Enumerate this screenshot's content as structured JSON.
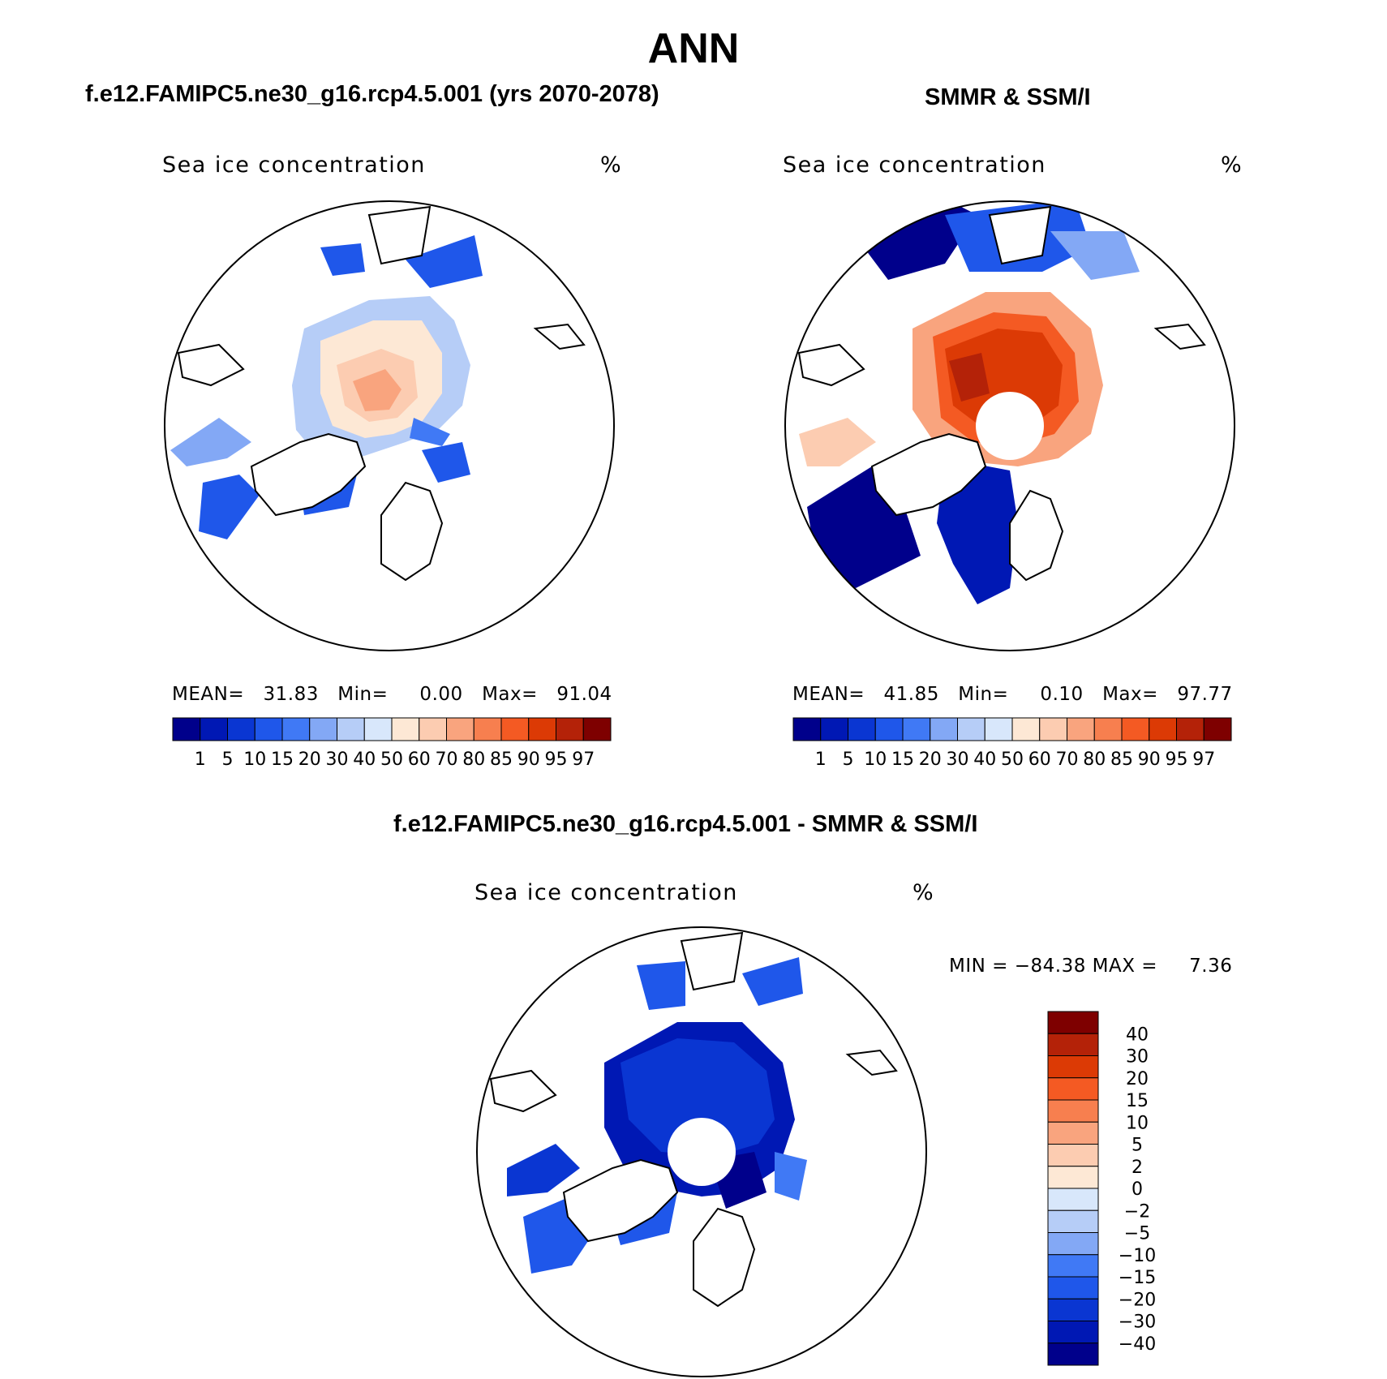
{
  "page": {
    "title": "ANN",
    "bottom_title": "f.e12.FAMIPC5.ne30_g16.rcp4.5.001 - SMMR & SSM/I"
  },
  "colors": {
    "seq": [
      "#00008b",
      "#0018b4",
      "#0a36d2",
      "#1f57ea",
      "#4079f5",
      "#83a8f5",
      "#b6cdf7",
      "#d8e7fb",
      "#fde8d5",
      "#fcccb1",
      "#f9a47e",
      "#f77f4f",
      "#f45a23",
      "#dc3a05",
      "#b42208",
      "#7e0000"
    ],
    "diff": [
      "#00008b",
      "#0018b4",
      "#0a36d2",
      "#1f57ea",
      "#4079f5",
      "#83a8f5",
      "#b6cdf7",
      "#d8e7fb",
      "#fde8d5",
      "#fcccb1",
      "#f9a47e",
      "#f77f4f",
      "#f45a23",
      "#dc3a05",
      "#b42208",
      "#7e0000"
    ]
  },
  "panels": [
    {
      "id": "model",
      "title": "f.e12.FAMIPC5.ne30_g16.rcp4.5.001 (yrs 2070-2078)",
      "var_label": "Sea ice concentration",
      "units": "%",
      "stats_text": "MEAN=   31.83   Min=     0.00   Max=   91.04",
      "mean": 31.83,
      "min": 0.0,
      "max": 91.04,
      "pole_hole": false
    },
    {
      "id": "obs",
      "title": "SMMR & SSM/I",
      "var_label": "Sea ice concentration",
      "units": "%",
      "stats_text": "MEAN=   41.85   Min=     0.10   Max=   97.77",
      "mean": 41.85,
      "min": 0.1,
      "max": 97.77,
      "pole_hole": true
    },
    {
      "id": "diff",
      "title": "",
      "var_label": "Sea ice concentration",
      "units": "%",
      "stats_text": "MIN = −84.38 MAX =     7.36",
      "min": -84.38,
      "max": 7.36,
      "pole_hole": true
    }
  ],
  "colorbar_seq": {
    "levels": [
      "1",
      "5",
      "10",
      "15",
      "20",
      "30",
      "40",
      "50",
      "60",
      "70",
      "80",
      "85",
      "90",
      "95",
      "97"
    ]
  },
  "colorbar_diff": {
    "levels": [
      "40",
      "30",
      "20",
      "15",
      "10",
      "5",
      "2",
      "0",
      "−2",
      "−5",
      "−10",
      "−15",
      "−20",
      "−30",
      "−40"
    ]
  }
}
